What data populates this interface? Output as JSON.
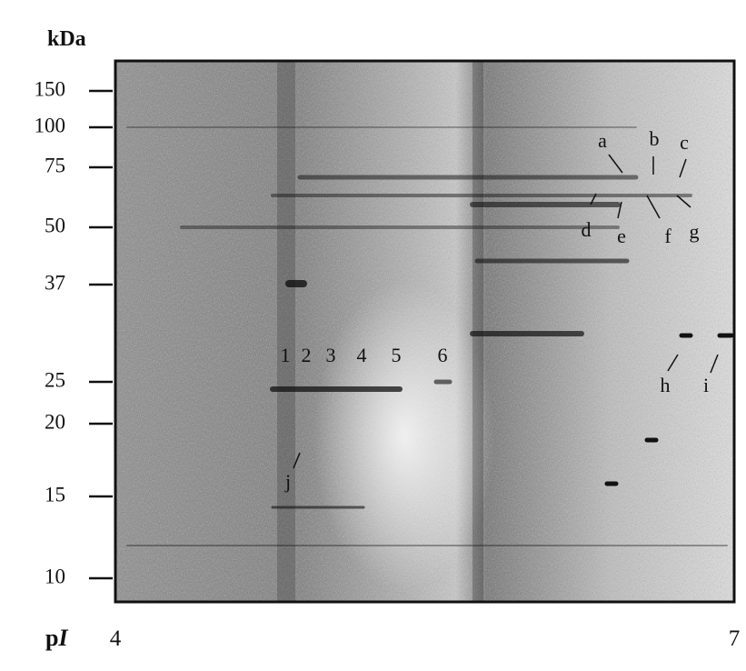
{
  "figure": {
    "y_axis": {
      "unit": "kDa",
      "ticks": [
        "150",
        "100",
        "75",
        "50",
        "37",
        "25",
        "20",
        "15",
        "10"
      ]
    },
    "x_axis": {
      "label": "p",
      "label_italic": "I",
      "ticks": [
        "4",
        "7"
      ]
    },
    "spot_letters": [
      "a",
      "b",
      "c",
      "d",
      "e",
      "f",
      "g",
      "h",
      "i",
      "j"
    ],
    "spot_numbers": [
      "1",
      "2",
      "3",
      "4",
      "5",
      "6"
    ]
  }
}
